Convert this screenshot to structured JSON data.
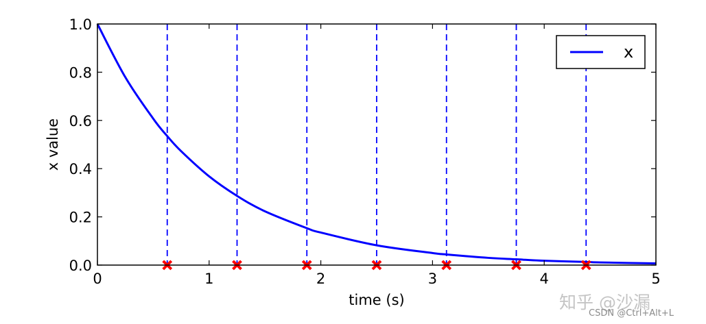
{
  "chart_data": {
    "type": "line",
    "title": "",
    "xlabel": "time (s)",
    "ylabel": "x value",
    "xlim": [
      0,
      5
    ],
    "ylim": [
      0,
      1
    ],
    "xticks": [
      0,
      1,
      2,
      3,
      4,
      5
    ],
    "yticks": [
      0.0,
      0.2,
      0.4,
      0.6,
      0.8,
      1.0
    ],
    "xtick_labels": [
      "0",
      "1",
      "2",
      "3",
      "4",
      "5"
    ],
    "ytick_labels": [
      "0.0",
      "0.2",
      "0.4",
      "0.6",
      "0.8",
      "1.0"
    ],
    "grid": false,
    "legend_position": "top-right",
    "series": [
      {
        "name": "x",
        "color": "#0000ff",
        "style": "solid",
        "x": [
          0,
          0.25,
          0.5,
          0.625,
          0.75,
          1.0,
          1.25,
          1.5,
          1.875,
          2.0,
          2.5,
          3.0,
          3.125,
          3.5,
          3.75,
          4.0,
          4.375,
          4.5,
          5.0
        ],
        "y": [
          1.0,
          0.779,
          0.607,
          0.535,
          0.472,
          0.368,
          0.287,
          0.223,
          0.153,
          0.135,
          0.082,
          0.05,
          0.044,
          0.03,
          0.024,
          0.018,
          0.013,
          0.011,
          0.007
        ]
      }
    ],
    "vertical_lines": {
      "x": [
        0.625,
        1.25,
        1.875,
        2.5,
        3.125,
        3.75,
        4.375
      ],
      "color": "#0000ff",
      "style": "dashed"
    },
    "markers": {
      "x": [
        0.625,
        1.25,
        1.875,
        2.5,
        3.125,
        3.75,
        4.375
      ],
      "y": [
        0,
        0,
        0,
        0,
        0,
        0,
        0
      ],
      "color": "#ff0000",
      "shape": "x"
    }
  },
  "watermark": {
    "main": "知乎 @沙漏",
    "sub": "CSDN @Ctrl+Alt+L"
  }
}
